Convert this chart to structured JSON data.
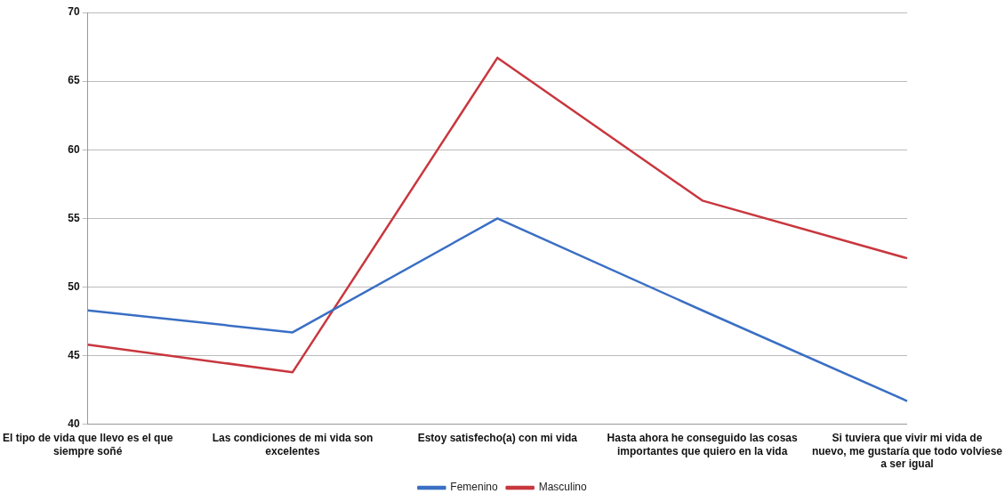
{
  "chart_data": {
    "type": "line",
    "categories": [
      "El tipo de vida que llevo es el que siempre soñé",
      "Las condiciones de mi vida son excelentes",
      "Estoy satisfecho(a) con mi vida",
      "Hasta ahora he conseguido las cosas importantes que quiero en la vida",
      "Si tuviera que vivir mi vida de nuevo, me gustaría que todo volviese a ser igual"
    ],
    "series": [
      {
        "name": "Femenino",
        "color": "#3a6fc4",
        "values": [
          48.3,
          46.7,
          55.0,
          48.3,
          41.7
        ]
      },
      {
        "name": "Masculino",
        "color": "#c8373e",
        "values": [
          45.8,
          43.8,
          66.7,
          56.3,
          52.1
        ]
      }
    ],
    "ylim": [
      40,
      70
    ],
    "yticks": [
      40,
      45,
      50,
      55,
      60,
      65,
      70
    ],
    "grid": "y",
    "legend": "bottom",
    "marker": "none",
    "line_style": "solid"
  }
}
